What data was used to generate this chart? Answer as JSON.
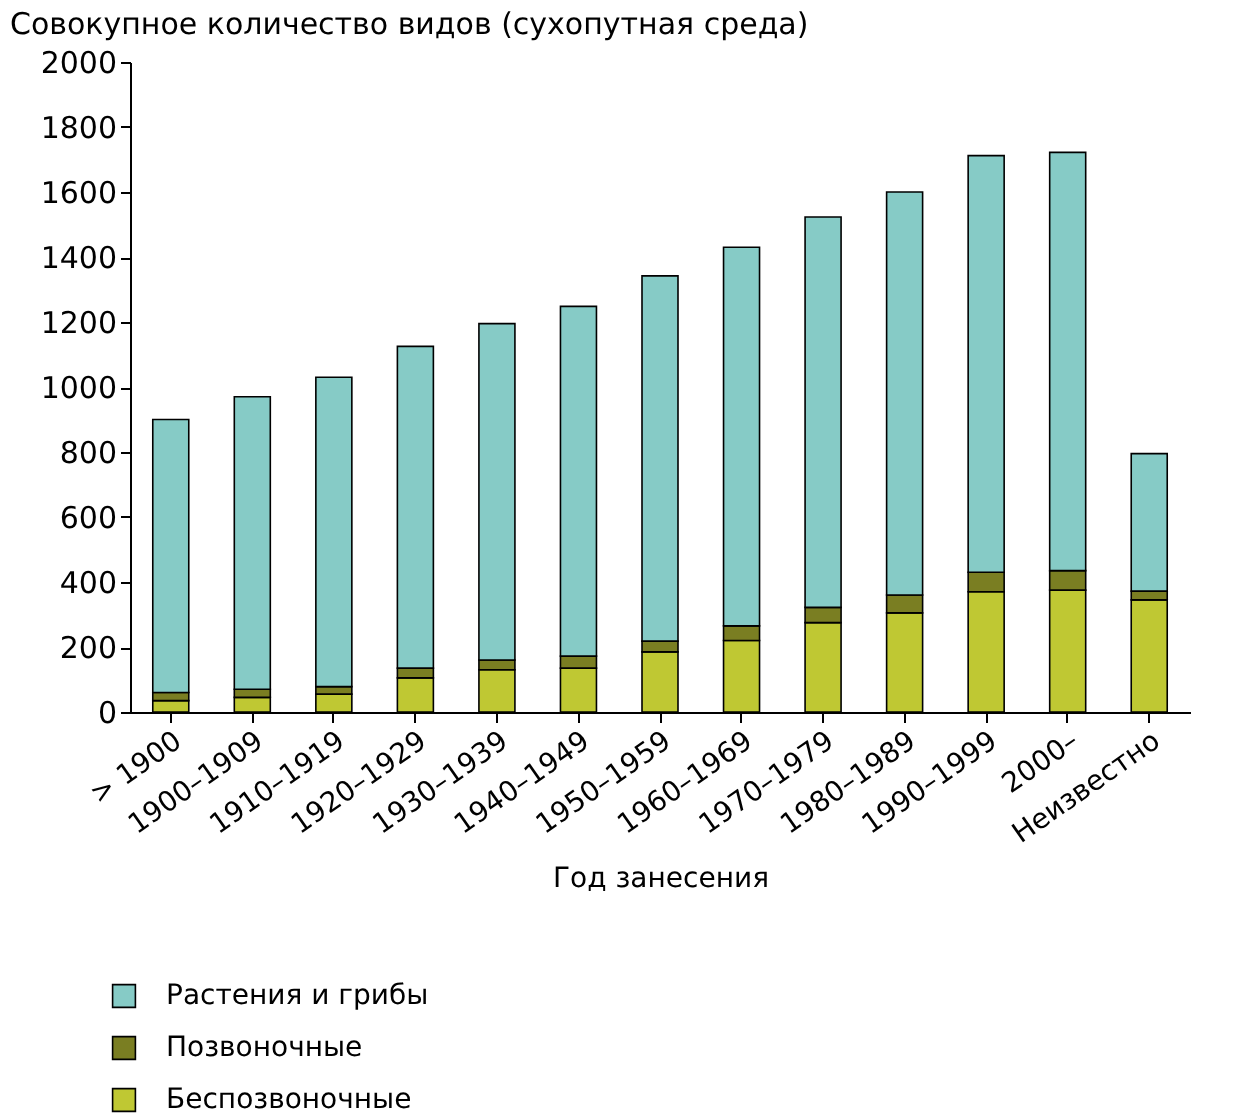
{
  "chart_data": {
    "type": "bar",
    "stacked": true,
    "title": "Совокупное количество видов (сухопутная среда)",
    "xlabel": "Год занесения",
    "categories": [
      "> 1900",
      "1900–1909",
      "1910–1919",
      "1920–1929",
      "1930–1939",
      "1940–1949",
      "1950–1959",
      "1960–1969",
      "1970–1979",
      "1980–1989",
      "1990–1999",
      "2000–",
      "Неизвестно"
    ],
    "series": [
      {
        "name": "Беспозвоночные",
        "color": "#bfc833",
        "values": [
          35,
          45,
          55,
          105,
          130,
          135,
          185,
          220,
          275,
          305,
          370,
          375,
          345
        ]
      },
      {
        "name": "Позвоночные",
        "color": "#7a7e22",
        "values": [
          25,
          25,
          23,
          30,
          30,
          37,
          33,
          45,
          47,
          55,
          60,
          60,
          27
        ]
      },
      {
        "name": "Растения и грибы",
        "color": "#86cbc6",
        "values": [
          840,
          900,
          952,
          990,
          1035,
          1076,
          1124,
          1165,
          1201,
          1240,
          1282,
          1287,
          423
        ]
      }
    ],
    "ylim": [
      0,
      2000
    ],
    "yticks": [
      0,
      200,
      400,
      600,
      800,
      1000,
      1200,
      1400,
      1600,
      1800,
      2000
    ],
    "grid": false,
    "legend": "bottom left"
  }
}
